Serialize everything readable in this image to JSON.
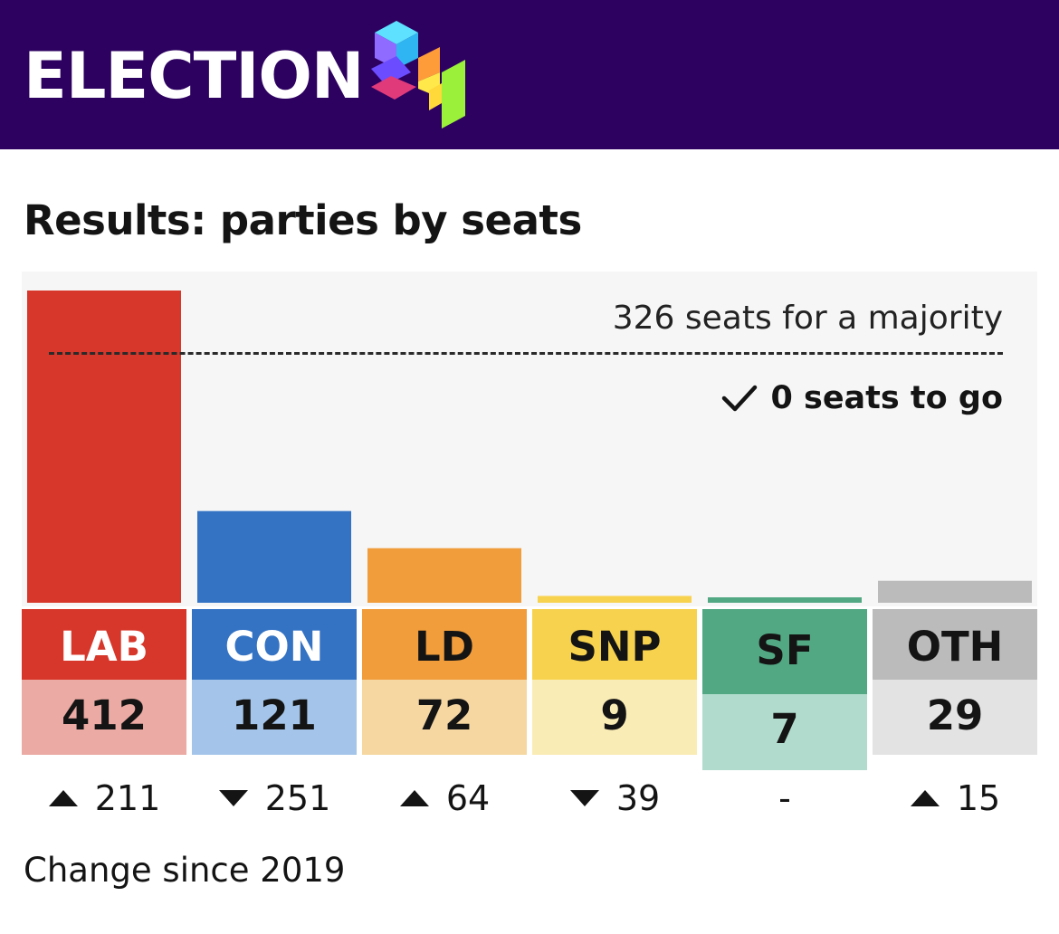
{
  "header": {
    "title": "ELECTION",
    "logo_icon": "election-24-logo-icon"
  },
  "section_title": "Results: parties by seats",
  "majority": {
    "label": "326 seats for a majority",
    "threshold": 326,
    "to_go_label": "0 seats to go",
    "check_icon": "check-icon"
  },
  "chart_data": {
    "type": "bar",
    "title": "Results: parties by seats",
    "categories": [
      "LAB",
      "CON",
      "LD",
      "SNP",
      "SF",
      "OTH"
    ],
    "values": [
      412,
      121,
      72,
      9,
      7,
      29
    ],
    "ylim": [
      0,
      412
    ],
    "reference_line": {
      "value": 326,
      "label": "326 seats for a majority"
    },
    "xlabel": "",
    "ylabel": ""
  },
  "parties": [
    {
      "code": "LAB",
      "seats": "412",
      "change": "211",
      "direction": "up",
      "color": "#d7372a",
      "label_text_color": "#ffffff",
      "seat_bg": "#ebaaa3"
    },
    {
      "code": "CON",
      "seats": "121",
      "change": "251",
      "direction": "down",
      "color": "#3473c4",
      "label_text_color": "#ffffff",
      "seat_bg": "#a4c5e9"
    },
    {
      "code": "LD",
      "seats": "72",
      "change": "64",
      "direction": "up",
      "color": "#f19d3b",
      "label_text_color": "#141414",
      "seat_bg": "#f6d7a2"
    },
    {
      "code": "SNP",
      "seats": "9",
      "change": "39",
      "direction": "down",
      "color": "#f7d24e",
      "label_text_color": "#141414",
      "seat_bg": "#faecb5"
    },
    {
      "code": "SF",
      "seats": "7",
      "change": "-",
      "direction": "none",
      "color": "#52a883",
      "label_text_color": "#141414",
      "seat_bg": "#b1dccd"
    },
    {
      "code": "OTH",
      "seats": "29",
      "change": "15",
      "direction": "up",
      "color": "#bbbbbb",
      "label_text_color": "#141414",
      "seat_bg": "#e3e3e3"
    }
  ],
  "footer": {
    "change_label": "Change since 2019"
  }
}
